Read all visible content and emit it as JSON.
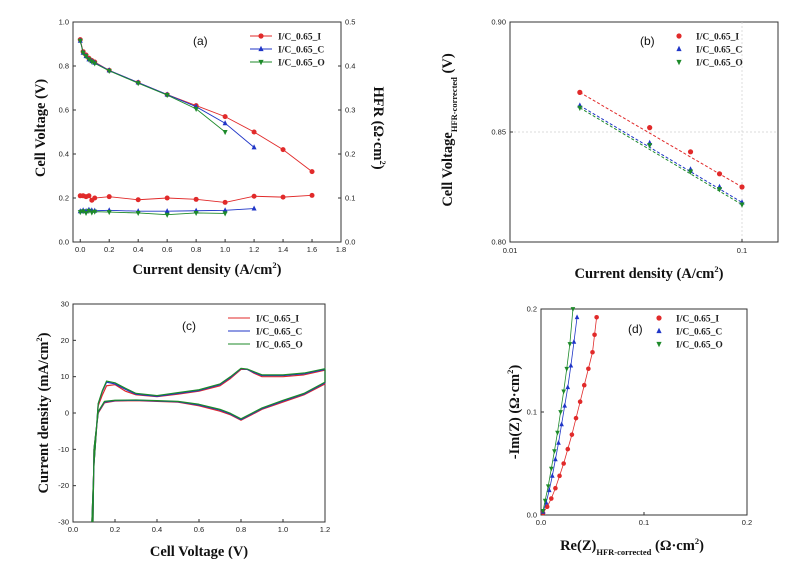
{
  "colors": {
    "I": "#e12a2a",
    "C": "#1f35c7",
    "O": "#1d8a2a"
  },
  "chart_data": [
    {
      "panel": "a",
      "type": "line",
      "label": "(a)",
      "xlabel": "Current density (A/cm",
      "xlabel_sup": "2",
      "xlabel_end": ")",
      "ylabel": "Cell Voltage (V)",
      "y2label": "HFR (Ω·cm",
      "y2label_sup": "2",
      "y2label_end": ")",
      "xlim": [
        -0.05,
        1.8
      ],
      "ylim": [
        0.0,
        1.0
      ],
      "y2lim": [
        0.0,
        0.5
      ],
      "xticks": [
        "0.0",
        "0.2",
        "0.4",
        "0.6",
        "0.8",
        "1.0",
        "1.2",
        "1.4",
        "1.6",
        "1.8"
      ],
      "yticks": [
        "0.0",
        "0.2",
        "0.4",
        "0.6",
        "0.8",
        "1.0"
      ],
      "y2ticks": [
        "0.0",
        "0.1",
        "0.2",
        "0.3",
        "0.4",
        "0.5"
      ],
      "legend": [
        "I/C_0.65_I",
        "I/C_0.65_C",
        "I/C_0.65_O"
      ],
      "series": [
        {
          "name": "I/C_0.65_I",
          "key": "I",
          "marker": "circle",
          "axis": "left",
          "x": [
            0,
            0.02,
            0.04,
            0.06,
            0.08,
            0.1,
            0.2,
            0.4,
            0.6,
            0.8,
            1.0,
            1.2,
            1.4,
            1.6
          ],
          "y": [
            0.92,
            0.865,
            0.85,
            0.835,
            0.825,
            0.818,
            0.78,
            0.725,
            0.67,
            0.62,
            0.57,
            0.5,
            0.42,
            0.32
          ]
        },
        {
          "name": "I/C_0.65_C",
          "key": "C",
          "marker": "tri-up",
          "axis": "left",
          "x": [
            0,
            0.02,
            0.04,
            0.06,
            0.08,
            0.1,
            0.2,
            0.4,
            0.6,
            0.8,
            1.0,
            1.2
          ],
          "y": [
            0.915,
            0.86,
            0.845,
            0.83,
            0.822,
            0.815,
            0.78,
            0.725,
            0.67,
            0.615,
            0.54,
            0.43
          ]
        },
        {
          "name": "I/C_0.65_O",
          "key": "O",
          "marker": "tri-down",
          "axis": "left",
          "x": [
            0,
            0.02,
            0.04,
            0.06,
            0.08,
            0.1,
            0.2,
            0.4,
            0.6,
            0.8,
            1.0
          ],
          "y": [
            0.915,
            0.86,
            0.845,
            0.83,
            0.82,
            0.812,
            0.778,
            0.722,
            0.668,
            0.605,
            0.5
          ]
        },
        {
          "name": "HFR I/C_0.65_I",
          "key": "I",
          "marker": "circle",
          "axis": "right",
          "x": [
            0,
            0.02,
            0.04,
            0.06,
            0.08,
            0.1,
            0.2,
            0.4,
            0.6,
            0.8,
            1.0,
            1.2,
            1.4,
            1.6
          ],
          "y": [
            0.105,
            0.105,
            0.103,
            0.105,
            0.095,
            0.1,
            0.103,
            0.096,
            0.1,
            0.097,
            0.09,
            0.104,
            0.102,
            0.106
          ]
        },
        {
          "name": "HFR I/C_0.65_C",
          "key": "C",
          "marker": "tri-up",
          "axis": "right",
          "x": [
            0,
            0.02,
            0.04,
            0.06,
            0.08,
            0.1,
            0.2,
            0.4,
            0.6,
            0.8,
            1.0,
            1.2
          ],
          "y": [
            0.07,
            0.072,
            0.07,
            0.073,
            0.072,
            0.071,
            0.072,
            0.07,
            0.07,
            0.071,
            0.072,
            0.076
          ]
        },
        {
          "name": "HFR I/C_0.65_O",
          "key": "O",
          "marker": "tri-down",
          "axis": "right",
          "x": [
            0,
            0.02,
            0.04,
            0.06,
            0.08,
            0.1,
            0.2,
            0.4,
            0.6,
            0.8,
            1.0
          ],
          "y": [
            0.068,
            0.07,
            0.066,
            0.071,
            0.067,
            0.069,
            0.068,
            0.066,
            0.062,
            0.066,
            0.065
          ]
        }
      ]
    },
    {
      "panel": "b",
      "type": "scatter",
      "label": "(b)",
      "xlabel": "Current density (A/cm",
      "xlabel_sup": "2",
      "xlabel_end": ")",
      "ylabel": "Cell Voltage",
      "ylabel_sub": "HFR-corrected",
      "ylabel_end": " (V)",
      "xscale": "log",
      "xlim": [
        0.01,
        0.1
      ],
      "ylim": [
        0.8,
        0.9
      ],
      "xticks": [
        "0.01",
        "0.1"
      ],
      "yticks": [
        "0.80",
        "0.85",
        "0.90"
      ],
      "grid": true,
      "legend": [
        "I/C_0.65_I",
        "I/C_0.65_C",
        "I/C_0.65_O"
      ],
      "series": [
        {
          "name": "I/C_0.65_I",
          "key": "I",
          "marker": "circle",
          "x": [
            0.02,
            0.04,
            0.06,
            0.08,
            0.1
          ],
          "y": [
            0.868,
            0.852,
            0.841,
            0.831,
            0.825
          ]
        },
        {
          "name": "I/C_0.65_C",
          "key": "C",
          "marker": "tri-up",
          "x": [
            0.02,
            0.04,
            0.06,
            0.08,
            0.1
          ],
          "y": [
            0.862,
            0.845,
            0.833,
            0.825,
            0.818
          ]
        },
        {
          "name": "I/C_0.65_O",
          "key": "O",
          "marker": "tri-down",
          "x": [
            0.02,
            0.04,
            0.06,
            0.08,
            0.1
          ],
          "y": [
            0.861,
            0.844,
            0.832,
            0.824,
            0.817
          ]
        }
      ],
      "fits": [
        {
          "key": "I",
          "x": [
            0.02,
            0.1
          ],
          "y": [
            0.868,
            0.825
          ]
        },
        {
          "key": "C",
          "x": [
            0.02,
            0.1
          ],
          "y": [
            0.862,
            0.818
          ]
        },
        {
          "key": "O",
          "x": [
            0.02,
            0.1
          ],
          "y": [
            0.861,
            0.817
          ]
        }
      ]
    },
    {
      "panel": "c",
      "type": "line",
      "label": "(c)",
      "xlabel": "Cell Voltage (V)",
      "ylabel": "Current density (mA/cm",
      "ylabel_sup": "2",
      "ylabel_end": ")",
      "xlim": [
        0.0,
        1.2
      ],
      "ylim": [
        -30,
        30
      ],
      "xticks": [
        "0.0",
        "0.2",
        "0.4",
        "0.6",
        "0.8",
        "1.0",
        "1.2"
      ],
      "yticks": [
        "-30",
        "-20",
        "-10",
        "0",
        "10",
        "20",
        "30"
      ],
      "legend": [
        "I/C_0.65_I",
        "I/C_0.65_C",
        "I/C_0.65_O"
      ],
      "series": [
        {
          "name": "I/C_0.65_I",
          "key": "I",
          "x": [
            0.09,
            0.1,
            0.12,
            0.14,
            0.16,
            0.2,
            0.25,
            0.3,
            0.4,
            0.5,
            0.6,
            0.7,
            0.75,
            0.8,
            0.83,
            0.86,
            0.9,
            1.0,
            1.1,
            1.2,
            1.2,
            1.1,
            1.0,
            0.9,
            0.85,
            0.8,
            0.75,
            0.7,
            0.6,
            0.5,
            0.4,
            0.3,
            0.2,
            0.15,
            0.12,
            0.1,
            0.095
          ],
          "y": [
            -30,
            -14,
            2,
            5,
            7.5,
            7.8,
            6,
            5,
            4.5,
            5.2,
            6,
            7.5,
            9.5,
            12,
            12,
            11,
            10,
            10,
            10.5,
            11.8,
            8,
            5,
            3,
            1,
            -0.5,
            -2,
            -0.5,
            0.5,
            2,
            3,
            3.2,
            3.4,
            3.3,
            2.8,
            0,
            -10,
            -30
          ]
        },
        {
          "name": "I/C_0.65_C",
          "key": "C",
          "x": [
            0.09,
            0.1,
            0.12,
            0.14,
            0.16,
            0.2,
            0.25,
            0.3,
            0.4,
            0.5,
            0.6,
            0.7,
            0.75,
            0.8,
            0.83,
            0.86,
            0.9,
            1.0,
            1.1,
            1.2,
            1.2,
            1.1,
            1.0,
            0.9,
            0.85,
            0.8,
            0.75,
            0.7,
            0.6,
            0.5,
            0.4,
            0.3,
            0.2,
            0.15,
            0.12,
            0.1,
            0.095
          ],
          "y": [
            -30,
            -14,
            2.5,
            6,
            8.5,
            8,
            6.5,
            5.2,
            4.6,
            5.4,
            6.2,
            7.8,
            9.8,
            12.2,
            12,
            11.2,
            10.3,
            10.3,
            10.8,
            12,
            8.3,
            5.2,
            3.3,
            1.2,
            -0.3,
            -1.8,
            -0.3,
            0.8,
            2.2,
            3.1,
            3.3,
            3.5,
            3.4,
            3,
            0.2,
            -10,
            -30
          ]
        },
        {
          "name": "I/C_0.65_O",
          "key": "O",
          "x": [
            0.09,
            0.1,
            0.12,
            0.14,
            0.16,
            0.2,
            0.25,
            0.3,
            0.4,
            0.5,
            0.6,
            0.7,
            0.75,
            0.8,
            0.83,
            0.86,
            0.9,
            1.0,
            1.1,
            1.2,
            1.2,
            1.1,
            1.0,
            0.9,
            0.85,
            0.8,
            0.75,
            0.7,
            0.6,
            0.5,
            0.4,
            0.3,
            0.2,
            0.15,
            0.12,
            0.1,
            0.095
          ],
          "y": [
            -30,
            -14,
            2.6,
            6.2,
            8.8,
            8.3,
            6.8,
            5.4,
            4.8,
            5.6,
            6.4,
            8,
            10,
            12.3,
            12.1,
            11.4,
            10.5,
            10.5,
            11,
            12.2,
            8.5,
            5.4,
            3.5,
            1.4,
            -0.1,
            -1.6,
            -0.1,
            1,
            2.4,
            3.2,
            3.4,
            3.6,
            3.5,
            3.2,
            0.4,
            -10,
            -30
          ]
        }
      ]
    },
    {
      "panel": "d",
      "type": "scatter",
      "label": "(d)",
      "xlabel": "Re(Z)",
      "xlabel_sub": "HFR-corrected",
      "xlabel_end": " (Ω·cm",
      "xlabel_sup": "2",
      "xlabel_end2": ")",
      "ylabel": "-Im(Z) (Ω·cm",
      "ylabel_sup": "2",
      "ylabel_end": ")",
      "xlim": [
        0.0,
        0.2
      ],
      "ylim": [
        0.0,
        0.2
      ],
      "xticks": [
        "0.0",
        "0.1",
        "0.2"
      ],
      "yticks": [
        "0.0",
        "0.1",
        "0.2"
      ],
      "legend": [
        "I/C_0.65_I",
        "I/C_0.65_C",
        "I/C_0.65_O"
      ],
      "series": [
        {
          "name": "I/C_0.65_I",
          "key": "I",
          "marker": "circle",
          "x": [
            0.002,
            0.006,
            0.01,
            0.014,
            0.018,
            0.022,
            0.026,
            0.03,
            0.034,
            0.038,
            0.042,
            0.046,
            0.05,
            0.052,
            0.054
          ],
          "y": [
            0.002,
            0.008,
            0.016,
            0.026,
            0.038,
            0.05,
            0.064,
            0.078,
            0.094,
            0.11,
            0.126,
            0.142,
            0.158,
            0.175,
            0.192
          ]
        },
        {
          "name": "I/C_0.65_C",
          "key": "C",
          "marker": "tri-up",
          "x": [
            0.002,
            0.005,
            0.008,
            0.011,
            0.014,
            0.017,
            0.02,
            0.023,
            0.026,
            0.029,
            0.032,
            0.035
          ],
          "y": [
            0.003,
            0.012,
            0.024,
            0.038,
            0.054,
            0.07,
            0.088,
            0.106,
            0.124,
            0.145,
            0.168,
            0.192
          ]
        },
        {
          "name": "I/C_0.65_O",
          "key": "O",
          "marker": "tri-down",
          "x": [
            0.002,
            0.004,
            0.007,
            0.01,
            0.013,
            0.016,
            0.019,
            0.022,
            0.025,
            0.028,
            0.031
          ],
          "y": [
            0.004,
            0.014,
            0.028,
            0.045,
            0.062,
            0.08,
            0.1,
            0.12,
            0.142,
            0.166,
            0.2
          ]
        }
      ]
    }
  ]
}
